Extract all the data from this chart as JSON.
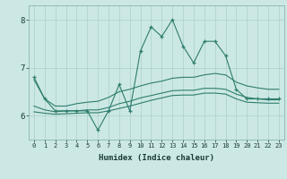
{
  "x": [
    0,
    1,
    2,
    3,
    4,
    5,
    6,
    7,
    8,
    9,
    10,
    11,
    12,
    13,
    14,
    15,
    16,
    17,
    18,
    19,
    20,
    21,
    22,
    23
  ],
  "line_main": [
    6.8,
    6.35,
    6.1,
    6.1,
    6.1,
    6.1,
    5.7,
    6.1,
    6.65,
    6.1,
    7.35,
    7.85,
    7.65,
    8.0,
    7.45,
    7.1,
    7.55,
    7.55,
    7.25,
    6.55,
    6.35,
    6.35,
    6.35,
    6.35
  ],
  "line_upper": [
    6.75,
    6.35,
    6.2,
    6.2,
    6.25,
    6.28,
    6.3,
    6.38,
    6.5,
    6.55,
    6.62,
    6.68,
    6.72,
    6.78,
    6.8,
    6.8,
    6.85,
    6.88,
    6.85,
    6.7,
    6.62,
    6.58,
    6.55,
    6.55
  ],
  "line_mid": [
    6.2,
    6.12,
    6.08,
    6.1,
    6.1,
    6.12,
    6.12,
    6.17,
    6.25,
    6.3,
    6.37,
    6.42,
    6.47,
    6.52,
    6.53,
    6.53,
    6.57,
    6.57,
    6.55,
    6.45,
    6.38,
    6.35,
    6.33,
    6.33
  ],
  "line_lower": [
    6.08,
    6.05,
    6.03,
    6.04,
    6.05,
    6.06,
    6.06,
    6.1,
    6.15,
    6.2,
    6.26,
    6.32,
    6.37,
    6.42,
    6.43,
    6.43,
    6.47,
    6.47,
    6.45,
    6.35,
    6.28,
    6.27,
    6.26,
    6.26
  ],
  "color_main": "#2e7d6e",
  "color_lines": "#2e7d6e",
  "bg_color": "#cce8e4",
  "grid_color": "#aacfcc",
  "xlabel": "Humidex (Indice chaleur)",
  "yticks": [
    6,
    7,
    8
  ],
  "ylim": [
    5.5,
    8.3
  ],
  "xlim": [
    -0.5,
    23.5
  ]
}
